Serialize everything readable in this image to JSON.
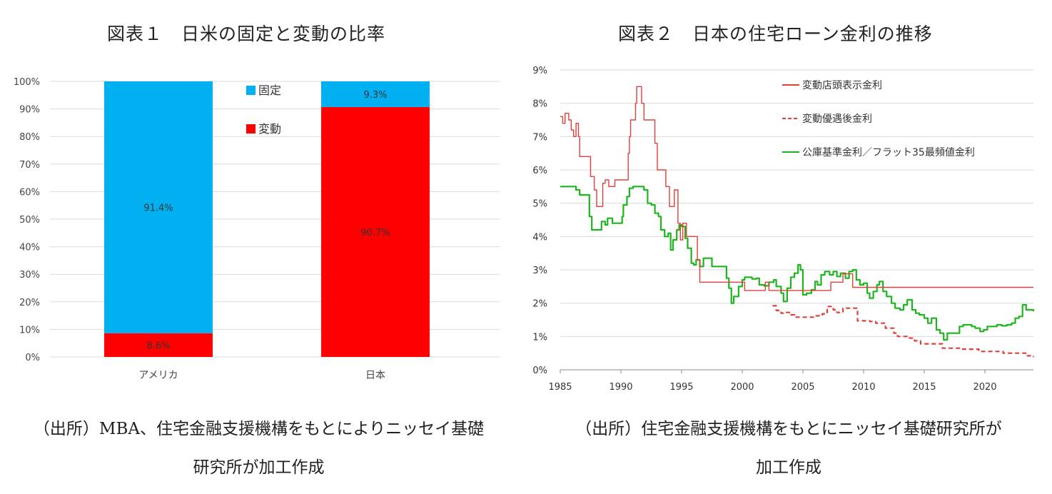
{
  "titles": {
    "chart1": "図表１　日米の固定と変動の比率",
    "chart2": "図表２　日本の住宅ローン金利の推移"
  },
  "sources": {
    "chart1_line1": "（出所）MBA、住宅金融支援機構をもとによりニッセイ基礎",
    "chart1_line2": "研究所が加工作成",
    "chart2_line1": "（出所）住宅金融支援機構をもとにニッセイ基礎研究所が",
    "chart2_line2": "加工作成"
  },
  "chart_data": [
    {
      "type": "bar",
      "stacked": true,
      "categories": [
        "アメリカ",
        "日本"
      ],
      "series": [
        {
          "name": "固定",
          "color": "#00B0F0",
          "values": [
            91.4,
            9.3
          ],
          "labels": [
            "91.4%",
            "9.3%"
          ]
        },
        {
          "name": "変動",
          "color": "#FF0000",
          "values": [
            8.6,
            90.7
          ],
          "labels": [
            "8.6%",
            "90.7%"
          ]
        }
      ],
      "ylim": [
        0,
        100
      ],
      "yticks": [
        "0%",
        "10%",
        "20%",
        "30%",
        "40%",
        "50%",
        "60%",
        "70%",
        "80%",
        "90%",
        "100%"
      ],
      "legend": "top-center",
      "grid": true
    },
    {
      "type": "line",
      "xlim": [
        1985,
        2024
      ],
      "ylim": [
        0,
        9
      ],
      "xticks": [
        "1985",
        "1990",
        "1995",
        "2000",
        "2005",
        "2010",
        "2015",
        "2020"
      ],
      "yticks": [
        "0%",
        "1%",
        "2%",
        "3%",
        "4%",
        "5%",
        "6%",
        "7%",
        "8%",
        "9%"
      ],
      "legend": "top-right",
      "grid": true,
      "series": [
        {
          "name": "変動店頭表示金利",
          "color": "#E0403A",
          "style": "solid",
          "points": [
            [
              1985,
              7.6
            ],
            [
              1985.2,
              7.4
            ],
            [
              1985.4,
              7.7
            ],
            [
              1985.7,
              7.5
            ],
            [
              1985.9,
              7.2
            ],
            [
              1986.1,
              7.0
            ],
            [
              1986.3,
              7.4
            ],
            [
              1986.5,
              7.0
            ],
            [
              1986.6,
              6.4
            ],
            [
              1987.4,
              6.4
            ],
            [
              1987.5,
              5.8
            ],
            [
              1987.8,
              5.4
            ],
            [
              1988.0,
              4.9
            ],
            [
              1988.3,
              4.9
            ],
            [
              1988.5,
              5.6
            ],
            [
              1988.7,
              5.7
            ],
            [
              1989.0,
              5.5
            ],
            [
              1989.3,
              5.5
            ],
            [
              1989.5,
              5.7
            ],
            [
              1990.5,
              5.7
            ],
            [
              1990.6,
              6.5
            ],
            [
              1990.7,
              7.0
            ],
            [
              1990.8,
              7.5
            ],
            [
              1991.1,
              7.5
            ],
            [
              1991.2,
              8.0
            ],
            [
              1991.3,
              8.5
            ],
            [
              1991.6,
              8.5
            ],
            [
              1991.7,
              8.0
            ],
            [
              1991.9,
              7.5
            ],
            [
              1992.6,
              7.5
            ],
            [
              1992.8,
              6.8
            ],
            [
              1993.0,
              6.0
            ],
            [
              1993.5,
              6.0
            ],
            [
              1993.7,
              5.5
            ],
            [
              1994.0,
              4.9
            ],
            [
              1994.3,
              4.9
            ],
            [
              1994.4,
              5.4
            ],
            [
              1994.6,
              5.4
            ],
            [
              1994.7,
              4.4
            ],
            [
              1994.9,
              3.9
            ],
            [
              1995.1,
              4.4
            ],
            [
              1995.4,
              4.0
            ],
            [
              1996.2,
              4.0
            ],
            [
              1996.3,
              3.3
            ],
            [
              1996.5,
              2.63
            ],
            [
              2000.1,
              2.63
            ],
            [
              2000.2,
              2.38
            ],
            [
              2001.8,
              2.38
            ],
            [
              2001.9,
              2.63
            ],
            [
              2002.2,
              2.38
            ],
            [
              2007.2,
              2.38
            ],
            [
              2007.3,
              2.63
            ],
            [
              2008.2,
              2.63
            ],
            [
              2008.3,
              2.88
            ],
            [
              2009.0,
              2.88
            ],
            [
              2009.1,
              2.475
            ],
            [
              2024,
              2.475
            ]
          ]
        },
        {
          "name": "変動優遇後金利",
          "color": "#E0403A",
          "style": "dashed",
          "points": [
            [
              2002.5,
              1.92
            ],
            [
              2002.8,
              1.78
            ],
            [
              2003.2,
              1.7
            ],
            [
              2003.6,
              1.72
            ],
            [
              2004.0,
              1.65
            ],
            [
              2004.3,
              1.58
            ],
            [
              2005.5,
              1.58
            ],
            [
              2006.0,
              1.62
            ],
            [
              2006.6,
              1.68
            ],
            [
              2007.0,
              1.9
            ],
            [
              2007.5,
              1.8
            ],
            [
              2007.8,
              1.72
            ],
            [
              2008.3,
              1.85
            ],
            [
              2009.3,
              1.85
            ],
            [
              2009.5,
              1.47
            ],
            [
              2010.5,
              1.45
            ],
            [
              2011.0,
              1.4
            ],
            [
              2011.8,
              1.25
            ],
            [
              2012.5,
              1.1
            ],
            [
              2012.8,
              1.0
            ],
            [
              2013.8,
              0.95
            ],
            [
              2014.2,
              0.87
            ],
            [
              2014.7,
              0.78
            ],
            [
              2016.4,
              0.78
            ],
            [
              2016.5,
              0.65
            ],
            [
              2018.0,
              0.62
            ],
            [
              2019.5,
              0.55
            ],
            [
              2021.5,
              0.5
            ],
            [
              2023.5,
              0.42
            ],
            [
              2024,
              0.38
            ]
          ]
        },
        {
          "name": "公庫基準金利／フラット35最頻値金利",
          "color": "#1DB51D",
          "style": "solid",
          "points": [
            [
              1985,
              5.5
            ],
            [
              1986.0,
              5.5
            ],
            [
              1986.3,
              5.4
            ],
            [
              1986.6,
              5.25
            ],
            [
              1987.2,
              5.25
            ],
            [
              1987.4,
              4.6
            ],
            [
              1987.6,
              4.2
            ],
            [
              1988.2,
              4.2
            ],
            [
              1988.4,
              4.45
            ],
            [
              1988.7,
              4.35
            ],
            [
              1988.9,
              4.55
            ],
            [
              1989.3,
              4.4
            ],
            [
              1989.8,
              4.4
            ],
            [
              1990.1,
              4.6
            ],
            [
              1990.2,
              4.95
            ],
            [
              1990.5,
              5.2
            ],
            [
              1990.7,
              5.45
            ],
            [
              1991.0,
              5.5
            ],
            [
              1991.6,
              5.5
            ],
            [
              1991.9,
              5.4
            ],
            [
              1992.2,
              5.0
            ],
            [
              1992.5,
              4.95
            ],
            [
              1992.8,
              4.7
            ],
            [
              1993.1,
              4.6
            ],
            [
              1993.3,
              4.2
            ],
            [
              1993.6,
              4.0
            ],
            [
              1993.9,
              4.1
            ],
            [
              1994.1,
              3.6
            ],
            [
              1994.3,
              3.9
            ],
            [
              1994.6,
              4.2
            ],
            [
              1994.8,
              4.35
            ],
            [
              1995.0,
              4.3
            ],
            [
              1995.3,
              3.95
            ],
            [
              1995.5,
              3.65
            ],
            [
              1995.8,
              3.2
            ],
            [
              1996.0,
              3.15
            ],
            [
              1996.2,
              3.3
            ],
            [
              1996.5,
              3.1
            ],
            [
              1996.8,
              3.35
            ],
            [
              1997.2,
              3.35
            ],
            [
              1997.5,
              3.1
            ],
            [
              1998.4,
              3.1
            ],
            [
              1998.7,
              2.75
            ],
            [
              1998.9,
              2.45
            ],
            [
              1999.1,
              2.0
            ],
            [
              1999.3,
              2.2
            ],
            [
              1999.7,
              2.5
            ],
            [
              2000.0,
              2.7
            ],
            [
              2000.2,
              2.78
            ],
            [
              2000.8,
              2.73
            ],
            [
              2001.2,
              2.75
            ],
            [
              2001.4,
              2.55
            ],
            [
              2001.8,
              2.52
            ],
            [
              2002.2,
              2.63
            ],
            [
              2002.6,
              2.7
            ],
            [
              2002.8,
              2.5
            ],
            [
              2003.2,
              2.3
            ],
            [
              2003.4,
              2.05
            ],
            [
              2003.7,
              2.45
            ],
            [
              2004.0,
              2.78
            ],
            [
              2004.3,
              2.9
            ],
            [
              2004.6,
              3.15
            ],
            [
              2004.8,
              3.0
            ],
            [
              2005.0,
              2.25
            ],
            [
              2005.3,
              2.3
            ],
            [
              2005.7,
              2.4
            ],
            [
              2006.0,
              2.65
            ],
            [
              2006.2,
              2.55
            ],
            [
              2006.5,
              2.85
            ],
            [
              2006.8,
              2.95
            ],
            [
              2007.2,
              2.85
            ],
            [
              2007.5,
              2.95
            ],
            [
              2007.8,
              2.8
            ],
            [
              2008.1,
              2.9
            ],
            [
              2008.5,
              2.75
            ],
            [
              2008.8,
              2.95
            ],
            [
              2009.1,
              3.0
            ],
            [
              2009.4,
              2.7
            ],
            [
              2009.7,
              2.55
            ],
            [
              2010.0,
              2.6
            ],
            [
              2010.3,
              2.3
            ],
            [
              2010.5,
              2.15
            ],
            [
              2010.8,
              2.35
            ],
            [
              2011.1,
              2.55
            ],
            [
              2011.3,
              2.65
            ],
            [
              2011.6,
              2.35
            ],
            [
              2011.9,
              2.2
            ],
            [
              2012.3,
              2.0
            ],
            [
              2012.6,
              1.85
            ],
            [
              2013.0,
              1.8
            ],
            [
              2013.3,
              1.95
            ],
            [
              2013.6,
              2.1
            ],
            [
              2014.0,
              1.8
            ],
            [
              2014.3,
              1.7
            ],
            [
              2014.6,
              1.65
            ],
            [
              2015.0,
              1.55
            ],
            [
              2015.3,
              1.4
            ],
            [
              2015.6,
              1.55
            ],
            [
              2016.0,
              1.2
            ],
            [
              2016.3,
              1.1
            ],
            [
              2016.6,
              0.9
            ],
            [
              2016.9,
              1.1
            ],
            [
              2017.2,
              1.1
            ],
            [
              2017.6,
              1.1
            ],
            [
              2017.9,
              1.3
            ],
            [
              2018.2,
              1.35
            ],
            [
              2018.6,
              1.35
            ],
            [
              2018.9,
              1.3
            ],
            [
              2019.2,
              1.25
            ],
            [
              2019.6,
              1.15
            ],
            [
              2019.9,
              1.2
            ],
            [
              2020.2,
              1.3
            ],
            [
              2020.6,
              1.3
            ],
            [
              2021.0,
              1.35
            ],
            [
              2021.4,
              1.32
            ],
            [
              2021.8,
              1.35
            ],
            [
              2022.2,
              1.4
            ],
            [
              2022.5,
              1.55
            ],
            [
              2022.8,
              1.6
            ],
            [
              2023.1,
              1.95
            ],
            [
              2023.4,
              1.8
            ],
            [
              2023.7,
              1.8
            ],
            [
              2024,
              1.75
            ]
          ]
        }
      ]
    }
  ]
}
